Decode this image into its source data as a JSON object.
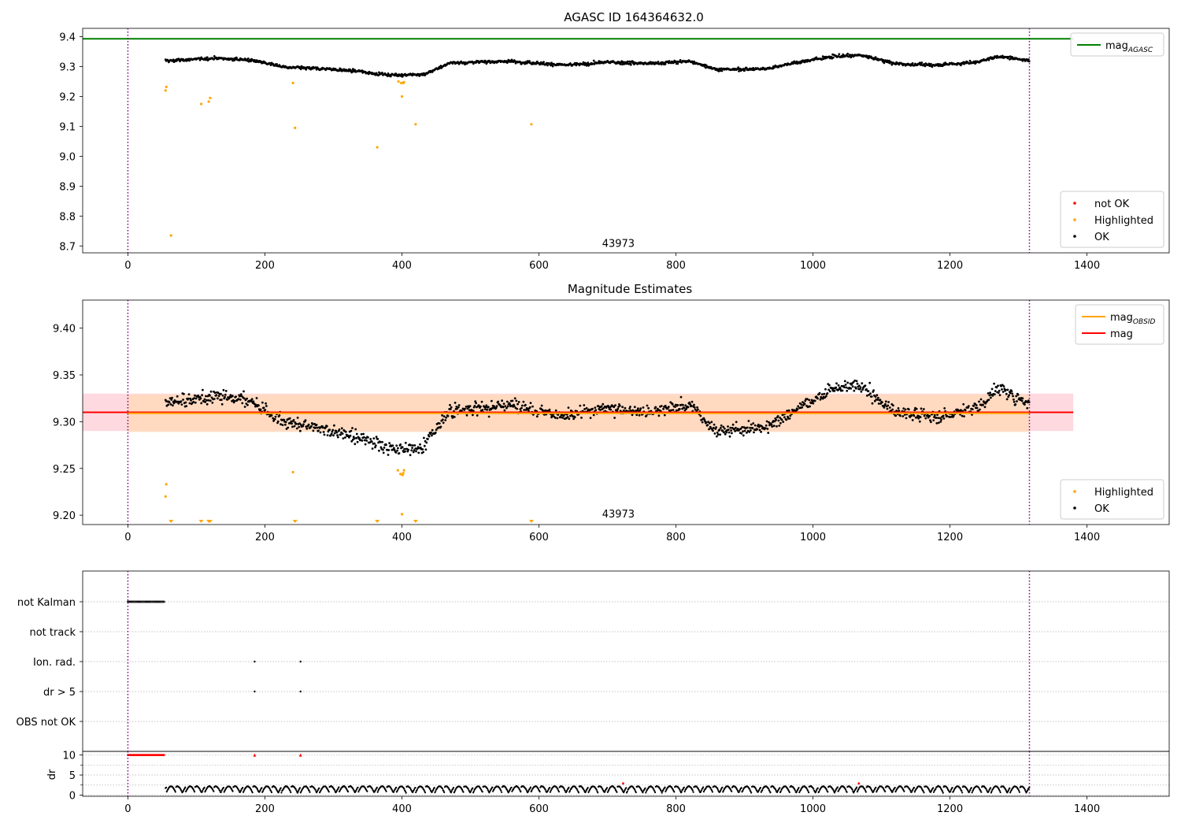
{
  "figure": {
    "colors": {
      "ok": "#000000",
      "highlighted": "#ffa500",
      "not_ok": "#ff0000",
      "agasc_line": "#008000",
      "obsid_line": "#ffa500",
      "mag_line": "#ff0000",
      "band_mag": "#ffc0cb",
      "band_obsid": "#ffdab9",
      "vline": "#800080"
    }
  },
  "chart_data": [
    {
      "id": "agasc",
      "type": "scatter",
      "title": "AGASC ID 164364632.0",
      "xlabel": "",
      "ylabel": "",
      "xlim": [
        -66,
        1520
      ],
      "ylim": [
        8.677,
        9.428
      ],
      "xticks": [
        "0",
        "200",
        "400",
        "600",
        "800",
        "1000",
        "1200",
        "1400"
      ],
      "yticks": [
        "8.7",
        "8.8",
        "8.9",
        "9.0",
        "9.1",
        "9.2",
        "9.3",
        "9.4"
      ],
      "grid": false,
      "vlines": [
        0,
        1316
      ],
      "hline": {
        "name": "mag_AGASC",
        "y": 9.393,
        "x_range": [
          -66,
          1380
        ]
      },
      "obsid_label": {
        "text": "43973",
        "x": 660,
        "y": 8.7
      },
      "legends": [
        {
          "position": "top-right",
          "entries": [
            {
              "base": "mag",
              "sub": "AGASC",
              "kind": "line",
              "color_key": "agasc_line"
            }
          ]
        },
        {
          "position": "bottom-right",
          "entries": [
            {
              "label": "not OK",
              "kind": "dot",
              "color_key": "not_ok"
            },
            {
              "label": "Highlighted",
              "kind": "dot",
              "color_key": "highlighted"
            },
            {
              "label": "OK",
              "kind": "dot",
              "color_key": "ok"
            }
          ]
        }
      ],
      "series": [
        {
          "name": "Highlighted",
          "color_key": "highlighted",
          "x": [
            55,
            56,
            63,
            107,
            118,
            120,
            241,
            244,
            364,
            395,
            399,
            403,
            400,
            402,
            420,
            589
          ],
          "y": [
            9.22,
            9.232,
            8.735,
            9.175,
            9.183,
            9.195,
            9.245,
            9.095,
            9.03,
            9.25,
            9.245,
            9.248,
            9.2,
            9.245,
            9.107,
            9.107
          ]
        }
      ]
    },
    {
      "id": "estimates",
      "type": "scatter",
      "title": "Magnitude Estimates",
      "xlabel": "",
      "ylabel": "",
      "xlim": [
        -66,
        1520
      ],
      "ylim": [
        9.19,
        9.43
      ],
      "xticks": [
        "0",
        "200",
        "400",
        "600",
        "800",
        "1000",
        "1200",
        "1400"
      ],
      "yticks": [
        "9.20",
        "9.25",
        "9.30",
        "9.35",
        "9.40"
      ],
      "grid": false,
      "vlines": [
        0,
        1316
      ],
      "mag": 9.31,
      "mag_band": [
        9.29,
        9.33
      ],
      "mag_obsid": 9.309,
      "obsid_band": [
        9.289,
        9.329
      ],
      "obsid_label": {
        "text": "43973",
        "x": 660,
        "y": 9.2
      },
      "legends": [
        {
          "position": "top-right",
          "entries": [
            {
              "base": "mag",
              "sub": "OBSID",
              "kind": "line",
              "color_key": "obsid_line"
            },
            {
              "base": "mag",
              "sub": "",
              "kind": "line",
              "color_key": "mag_line"
            }
          ]
        },
        {
          "position": "bottom-right",
          "entries": [
            {
              "label": "Highlighted",
              "kind": "dot",
              "color_key": "highlighted"
            },
            {
              "label": "OK",
              "kind": "dot",
              "color_key": "ok"
            }
          ]
        }
      ],
      "series": [
        {
          "name": "Highlighted",
          "color_key": "highlighted",
          "x": [
            55,
            56,
            241,
            394,
            398,
            401,
            403,
            400,
            402
          ],
          "y": [
            9.22,
            9.233,
            9.246,
            9.248,
            9.244,
            9.243,
            9.248,
            9.201,
            9.245
          ]
        },
        {
          "name": "Highlighted (below axis)",
          "color_key": "highlighted",
          "x": [
            63,
            107,
            118,
            120,
            244,
            364,
            420,
            589
          ]
        }
      ]
    },
    {
      "id": "flags",
      "type": "scatter",
      "title": "",
      "xlabel": "",
      "ylabel": "",
      "xlim": [
        -66,
        1520
      ],
      "categories": [
        "not Kalman",
        "not track",
        "Ion. rad.",
        "dr > 5",
        "OBS not OK"
      ],
      "grid": "dotted rows",
      "vlines": [
        0,
        1316
      ],
      "points": [
        {
          "row": "not Kalman",
          "x_range": [
            0,
            53
          ]
        },
        {
          "row": "Ion. rad.",
          "x": [
            185,
            252
          ]
        },
        {
          "row": "dr > 5",
          "x": [
            185,
            252
          ]
        }
      ]
    },
    {
      "id": "dr",
      "type": "scatter",
      "title": "",
      "xlabel": "",
      "ylabel": "dr",
      "xlim": [
        -66,
        1520
      ],
      "ylim": [
        -0.3,
        10.9
      ],
      "xticks": [
        "0",
        "200",
        "400",
        "600",
        "800",
        "1000",
        "1200",
        "1400"
      ],
      "yticks": [
        "0",
        "5",
        "10"
      ],
      "grid": true,
      "vlines": [
        0,
        1316
      ],
      "capped_at": 10,
      "series": [
        {
          "name": "dr capped",
          "color_key": "not_ok",
          "x_range": [
            0,
            53
          ],
          "extra_x": [
            185,
            252
          ],
          "y": 10
        },
        {
          "name": "not OK",
          "color_key": "not_ok",
          "x": [
            723,
            1067
          ],
          "y": [
            2.9,
            2.9
          ]
        }
      ]
    }
  ]
}
